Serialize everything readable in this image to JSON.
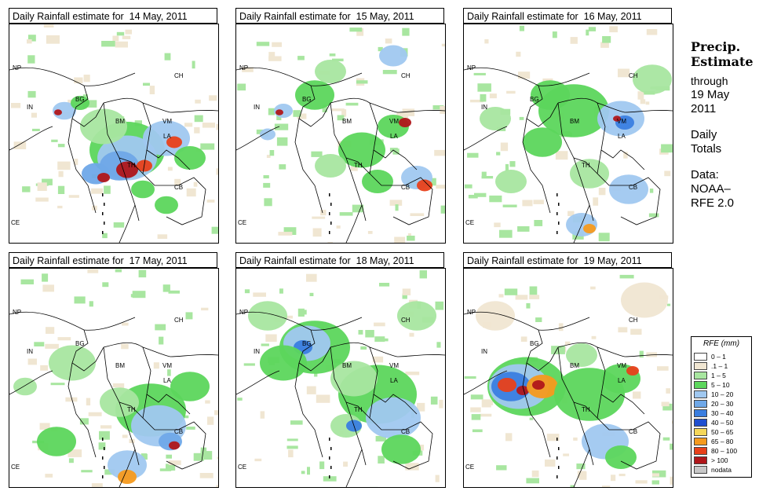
{
  "panels": [
    {
      "title": "Daily Rainfall estimate for  14 May, 2011",
      "intensity": "heavy-south"
    },
    {
      "title": "Daily Rainfall estimate for  15 May, 2011",
      "intensity": "moderate"
    },
    {
      "title": "Daily Rainfall estimate for  16 May, 2011",
      "intensity": "moderate-north"
    },
    {
      "title": "Daily Rainfall estimate for  17 May, 2011",
      "intensity": "moderate-south"
    },
    {
      "title": "Daily Rainfall estimate for  18 May, 2011",
      "intensity": "widespread"
    },
    {
      "title": "Daily Rainfall estimate for  19 May, 2011",
      "intensity": "heavy-bay"
    }
  ],
  "country_labels": [
    "NP",
    "CH",
    "IN",
    "BG",
    "BM",
    "VM",
    "LA",
    "TH",
    "CB",
    "CE"
  ],
  "side": {
    "title1": "Precip.",
    "title2": "Estimate",
    "through": "through",
    "date1": "19 May",
    "date2": "2011",
    "daily": "Daily",
    "totals": "Totals",
    "data": "Data:",
    "source": "NOAA–",
    "version": "RFE 2.0"
  },
  "legend": {
    "title": "RFE (mm)",
    "classes": [
      {
        "label": "0 – 1",
        "color": "#ffffff"
      },
      {
        "label": ".1 – 1",
        "color": "#f0e6d2"
      },
      {
        "label": "1 – 5",
        "color": "#a8e6a0"
      },
      {
        "label": "5 – 10",
        "color": "#5cd65c"
      },
      {
        "label": "10 – 20",
        "color": "#a0c8f0"
      },
      {
        "label": "20 – 30",
        "color": "#6fa8e8"
      },
      {
        "label": "30 – 40",
        "color": "#3a7ee0"
      },
      {
        "label": "40 – 50",
        "color": "#1f4fd0"
      },
      {
        "label": "50 – 65",
        "color": "#f5d75a"
      },
      {
        "label": "65 – 80",
        "color": "#f59a1e"
      },
      {
        "label": "80 – 100",
        "color": "#e8401a"
      },
      {
        "label": "> 100",
        "color": "#b0161a"
      },
      {
        "label": "nodata",
        "color": "#c8c8c8"
      }
    ]
  }
}
